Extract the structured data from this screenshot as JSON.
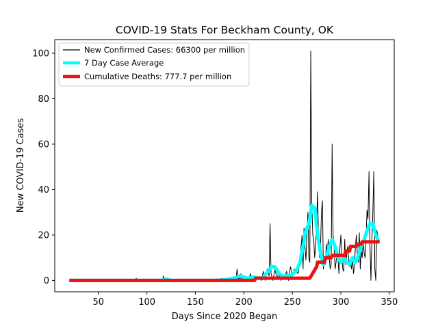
{
  "chart_data": {
    "type": "line",
    "title": "COVID-19 Stats For Beckham County, OK",
    "xlabel": "Days Since 2020 Began",
    "ylabel": "New COVID-19 Cases",
    "xlim": [
      5,
      355
    ],
    "ylim": [
      -5,
      106
    ],
    "xticks": [
      50,
      100,
      150,
      200,
      250,
      300,
      350
    ],
    "yticks": [
      0,
      20,
      40,
      60,
      80,
      100
    ],
    "grid": false,
    "legend_position": "top-left",
    "series": [
      {
        "name": "New Confirmed Cases: 66300 per million",
        "color": "#000000",
        "width": 1,
        "x": [
          20,
          30,
          40,
          50,
          60,
          70,
          80,
          88,
          89,
          90,
          100,
          110,
          116,
          117,
          118,
          119,
          120,
          121,
          122,
          130,
          140,
          150,
          160,
          170,
          176,
          177,
          178,
          180,
          185,
          190,
          192,
          193,
          194,
          195,
          196,
          197,
          198,
          200,
          202,
          205,
          207,
          208,
          210,
          212,
          215,
          218,
          220,
          222,
          224,
          226,
          227,
          228,
          230,
          232,
          234,
          236,
          238,
          240,
          242,
          244,
          246,
          248,
          250,
          252,
          254,
          256,
          258,
          260,
          261,
          262,
          263,
          264,
          265,
          266,
          267,
          268,
          269,
          270,
          271,
          272,
          273,
          274,
          275,
          276,
          277,
          278,
          279,
          280,
          281,
          282,
          283,
          284,
          285,
          286,
          287,
          288,
          289,
          290,
          291,
          292,
          293,
          294,
          295,
          296,
          297,
          298,
          299,
          300,
          301,
          302,
          303,
          304,
          305,
          306,
          307,
          308,
          309,
          310,
          311,
          312,
          313,
          314,
          315,
          316,
          317,
          318,
          319,
          320,
          321,
          322,
          323,
          324,
          325,
          326,
          327,
          328,
          329,
          330,
          331,
          332,
          333,
          334,
          335,
          336,
          337,
          338,
          339,
          340
        ],
        "y": [
          0,
          0,
          0,
          0,
          0,
          0,
          0,
          0,
          1,
          0,
          0,
          0,
          0,
          2,
          0,
          1,
          0,
          1,
          0,
          0,
          0,
          0,
          0,
          0,
          0,
          1,
          0,
          0,
          0,
          0,
          1,
          5,
          0,
          2,
          0,
          3,
          0,
          2,
          0,
          1,
          3,
          0,
          2,
          0,
          1,
          0,
          4,
          0,
          5,
          2,
          25,
          3,
          0,
          5,
          1,
          3,
          0,
          2,
          1,
          4,
          0,
          6,
          2,
          5,
          4,
          3,
          10,
          20,
          5,
          23,
          15,
          9,
          20,
          30,
          10,
          8,
          101,
          35,
          20,
          18,
          10,
          15,
          25,
          39,
          18,
          10,
          15,
          30,
          35,
          5,
          10,
          7,
          16,
          12,
          18,
          10,
          5,
          7,
          60,
          20,
          15,
          5,
          8,
          12,
          10,
          3,
          14,
          20,
          10,
          5,
          4,
          18,
          7,
          11,
          15,
          10,
          6,
          8,
          5,
          10,
          3,
          6,
          15,
          20,
          12,
          8,
          21,
          5,
          13,
          10,
          18,
          12,
          10,
          20,
          31,
          27,
          48,
          15,
          0,
          18,
          30,
          48,
          5,
          0,
          22,
          20,
          17,
          17
        ]
      },
      {
        "name": "7 Day Case Average",
        "color": "#00ffff",
        "width": 5,
        "x": [
          20,
          40,
          60,
          80,
          100,
          115,
          118,
          121,
          124,
          130,
          150,
          170,
          180,
          190,
          196,
          200,
          204,
          210,
          215,
          220,
          225,
          228,
          232,
          236,
          240,
          245,
          250,
          255,
          258,
          261,
          264,
          267,
          270,
          273,
          276,
          279,
          282,
          285,
          288,
          291,
          294,
          297,
          300,
          303,
          306,
          309,
          312,
          315,
          318,
          321,
          324,
          327,
          330,
          333,
          336,
          339
        ],
        "y": [
          0,
          0,
          0,
          0,
          0,
          0,
          0.5,
          0.5,
          0,
          0,
          0,
          0,
          0.3,
          1,
          2,
          1.5,
          1,
          1.5,
          1,
          1.5,
          4,
          6,
          6,
          3,
          2,
          2,
          2.5,
          5,
          8,
          15,
          22,
          25,
          33,
          32,
          20,
          12,
          7,
          10,
          15,
          18,
          15,
          10,
          8,
          10,
          8,
          7,
          10,
          8,
          11,
          15,
          18,
          22,
          25,
          25,
          20,
          17
        ]
      },
      {
        "name": "Cumulative Deaths: 777.7 per million",
        "color": "#ee1111",
        "width": 5,
        "x": [
          20,
          211,
          212,
          268,
          275,
          276,
          283,
          284,
          290,
          291,
          304,
          305,
          309,
          310,
          316,
          317,
          321,
          322,
          340
        ],
        "y": [
          0,
          0,
          1,
          1,
          6,
          8,
          8,
          10,
          10,
          11,
          11,
          13,
          13,
          15,
          15,
          16,
          16,
          17,
          17
        ]
      }
    ]
  }
}
